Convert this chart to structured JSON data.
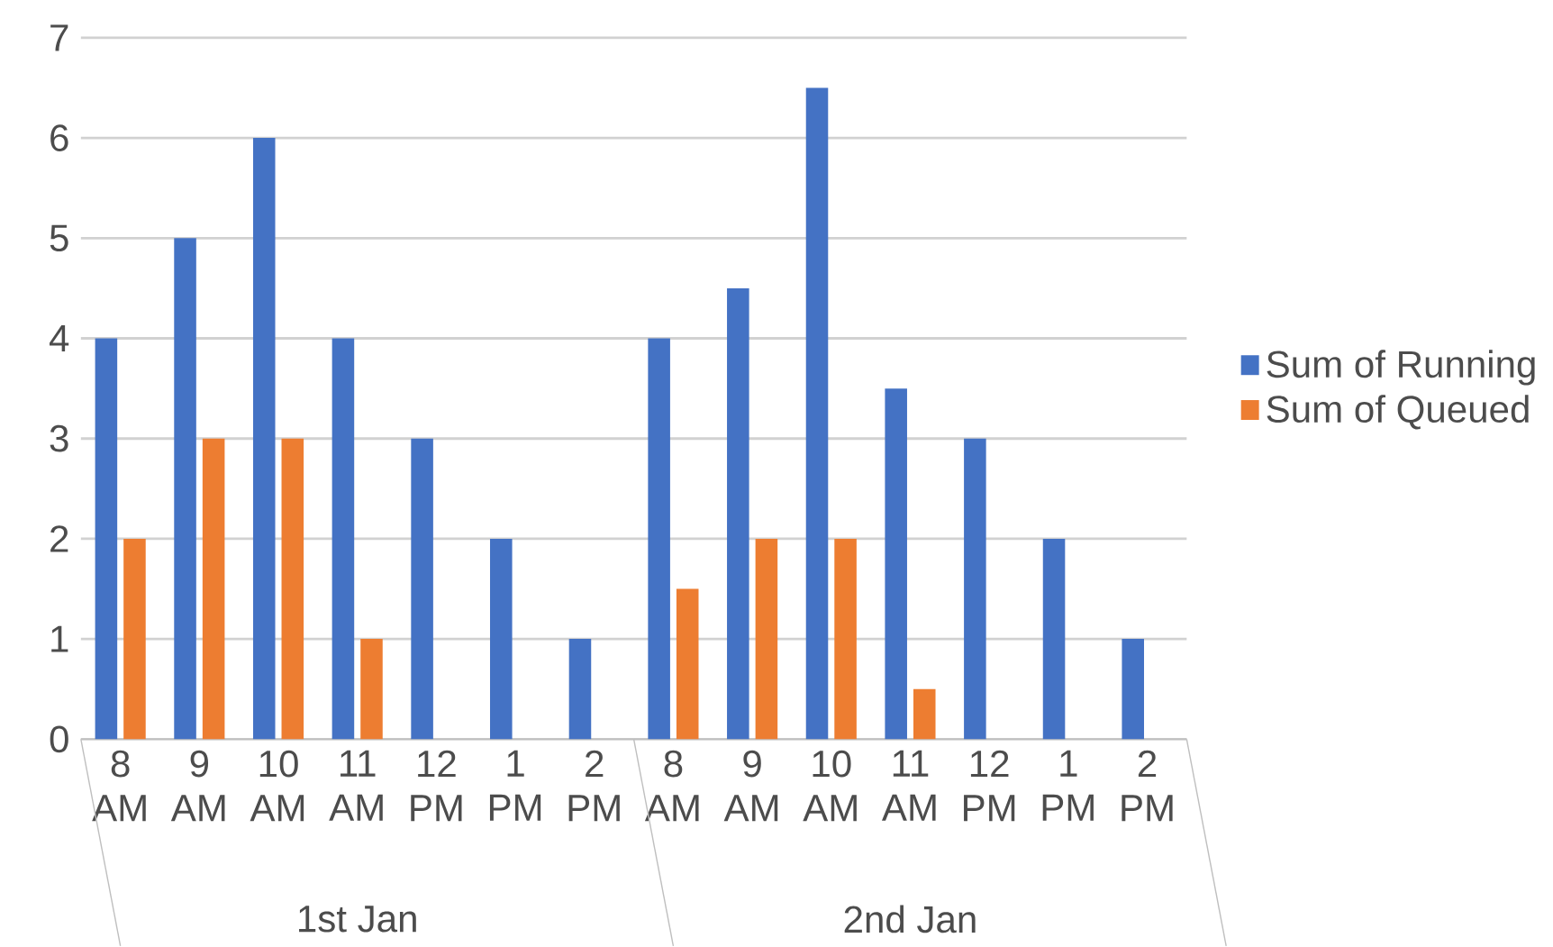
{
  "chart_data": {
    "type": "bar",
    "categories": [
      "8 AM",
      "9 AM",
      "10 AM",
      "11 AM",
      "12 PM",
      "1 PM",
      "2 PM",
      "8 AM",
      "9 AM",
      "10 AM",
      "11 AM",
      "12 PM",
      "1 PM",
      "2 PM"
    ],
    "series": [
      {
        "name": "Sum of Running",
        "color": "#4472c4",
        "values": [
          4,
          5,
          6,
          4,
          3,
          2,
          1,
          4,
          4.5,
          6.5,
          3.5,
          3,
          2,
          1
        ]
      },
      {
        "name": "Sum of Queued",
        "color": "#ed7d31",
        "values": [
          2,
          3,
          3,
          1,
          0,
          0,
          0,
          1.5,
          2,
          2,
          0.5,
          0,
          0,
          0
        ]
      }
    ],
    "annotations": [
      "1st Jan",
      "2nd Jan"
    ],
    "ylim": [
      0,
      7
    ],
    "yticks": [
      0,
      1,
      2,
      3,
      4,
      5,
      6,
      7
    ],
    "grid": "y",
    "legend": "right"
  }
}
